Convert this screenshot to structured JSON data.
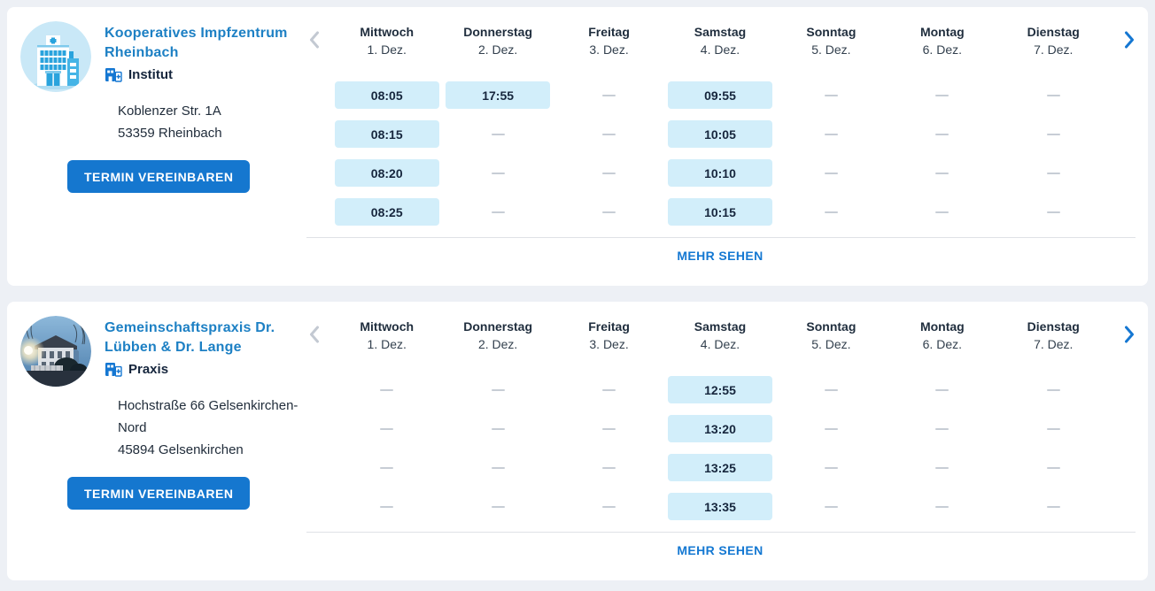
{
  "colors": {
    "accent_blue": "#1577d2",
    "title_blue": "#1d80c4",
    "slot_background": "#d2eefa",
    "dark_text": "#16263d",
    "page_background": "#edf0f5",
    "dash_gray": "#c7cdd5"
  },
  "calendar": {
    "days": [
      {
        "day": "Mittwoch",
        "date": "1. Dez."
      },
      {
        "day": "Donnerstag",
        "date": "2. Dez."
      },
      {
        "day": "Freitag",
        "date": "3. Dez."
      },
      {
        "day": "Samstag",
        "date": "4. Dez."
      },
      {
        "day": "Sonntag",
        "date": "5. Dez."
      },
      {
        "day": "Montag",
        "date": "6. Dez."
      },
      {
        "day": "Dienstag",
        "date": "7. Dez."
      }
    ],
    "more_label": "MEHR SEHEN",
    "prev_icon": "chevron-left",
    "next_icon": "chevron-right"
  },
  "cards": [
    {
      "title": "Kooperatives Impfzentrum Rheinbach",
      "type_label": "Institut",
      "avatar": "hospital-illustration",
      "address_line1": "Koblenzer Str. 1A",
      "address_line2": "53359 Rheinbach",
      "cta_label": "TERMIN VEREINBAREN",
      "slots_by_day": [
        [
          "08:05",
          "08:15",
          "08:20",
          "08:25"
        ],
        [
          "17:55",
          null,
          null,
          null
        ],
        [
          null,
          null,
          null,
          null
        ],
        [
          "09:55",
          "10:05",
          "10:10",
          "10:15"
        ],
        [
          null,
          null,
          null,
          null
        ],
        [
          null,
          null,
          null,
          null
        ],
        [
          null,
          null,
          null,
          null
        ]
      ]
    },
    {
      "title": "Gemeinschaftspraxis Dr. Lübben & Dr. Lange",
      "type_label": "Praxis",
      "avatar": "practice-photo",
      "address_line1": "Hochstraße 66 Gelsenkirchen-Nord",
      "address_line2": "45894 Gelsenkirchen",
      "cta_label": "TERMIN VEREINBAREN",
      "slots_by_day": [
        [
          null,
          null,
          null,
          null
        ],
        [
          null,
          null,
          null,
          null
        ],
        [
          null,
          null,
          null,
          null
        ],
        [
          "12:55",
          "13:20",
          "13:25",
          "13:35"
        ],
        [
          null,
          null,
          null,
          null
        ],
        [
          null,
          null,
          null,
          null
        ],
        [
          null,
          null,
          null,
          null
        ]
      ]
    }
  ]
}
